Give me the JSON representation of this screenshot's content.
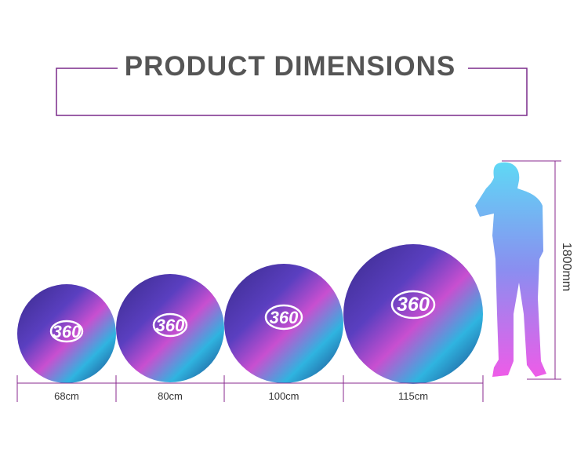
{
  "header": {
    "title": "PRODUCT DIMENSIONS"
  },
  "products": [
    {
      "logo": "360",
      "size": "68cm"
    },
    {
      "logo": "360",
      "size": "80cm"
    },
    {
      "logo": "360",
      "size": "100cm"
    },
    {
      "logo": "360",
      "size": "115cm"
    }
  ],
  "person": {
    "height": "1800mm"
  }
}
